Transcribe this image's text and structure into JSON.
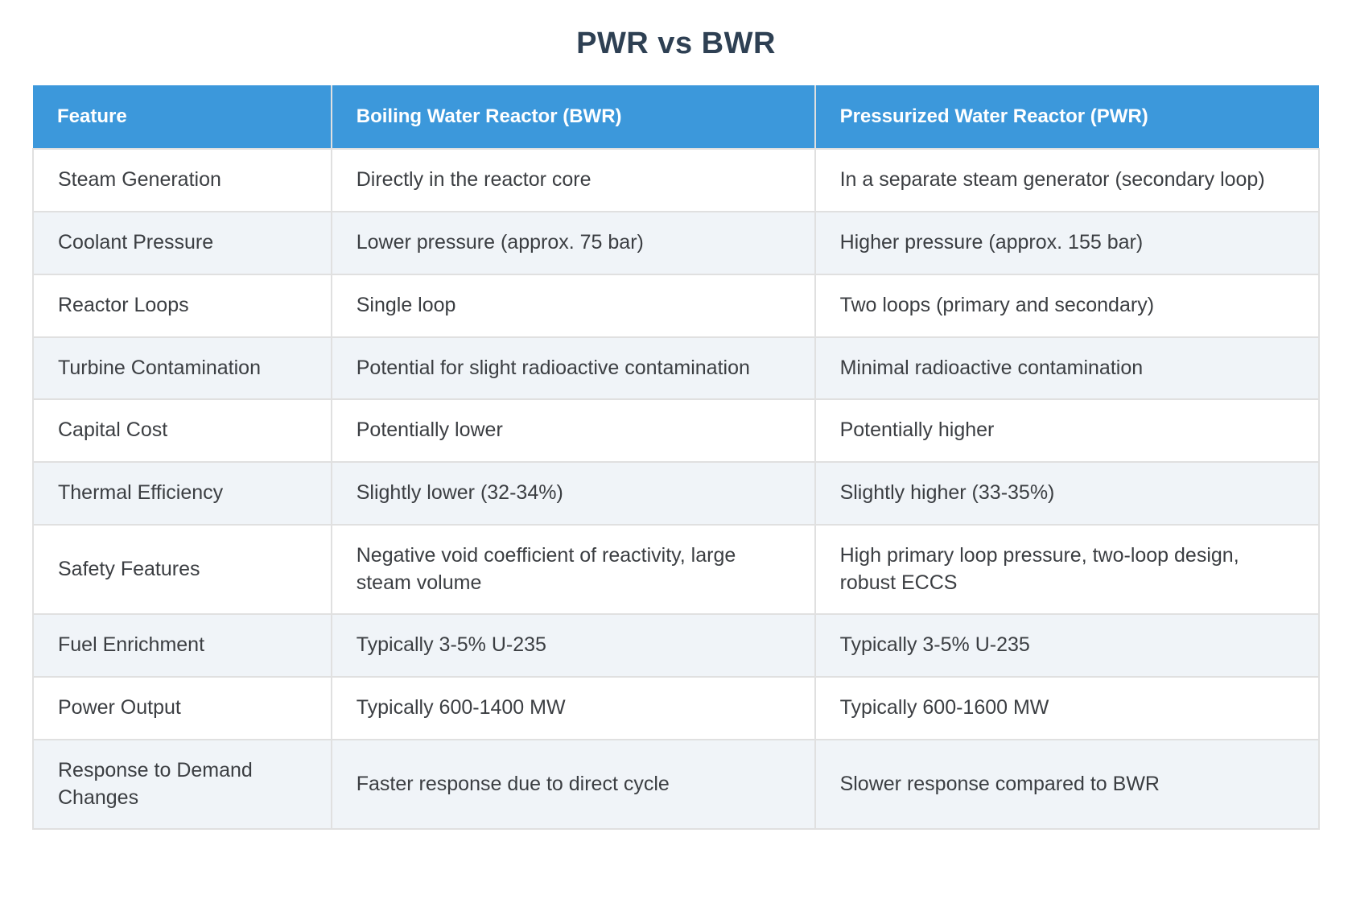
{
  "title": "PWR vs BWR",
  "colors": {
    "header_bg": "#3c98db",
    "header_text": "#ffffff",
    "row_bg": "#ffffff",
    "row_alt_bg": "#f0f4f8",
    "border": "#e0e0e0",
    "body_text": "#3b3e42",
    "title_text": "#2e4053",
    "page_bg": "#ffffff"
  },
  "table": {
    "columns": [
      "Feature",
      "Boiling Water Reactor (BWR)",
      "Pressurized Water Reactor (PWR)"
    ],
    "rows": [
      [
        "Steam Generation",
        "Directly in the reactor core",
        "In a separate steam generator (secondary loop)"
      ],
      [
        "Coolant Pressure",
        "Lower pressure (approx. 75 bar)",
        "Higher pressure (approx. 155 bar)"
      ],
      [
        "Reactor Loops",
        "Single loop",
        "Two loops (primary and secondary)"
      ],
      [
        "Turbine Contamination",
        "Potential for slight radioactive contamination",
        "Minimal radioactive contamination"
      ],
      [
        "Capital Cost",
        "Potentially lower",
        "Potentially higher"
      ],
      [
        "Thermal Efficiency",
        "Slightly lower (32-34%)",
        "Slightly higher (33-35%)"
      ],
      [
        "Safety Features",
        "Negative void coefficient of reactivity, large steam volume",
        "High primary loop pressure, two-loop design, robust ECCS"
      ],
      [
        "Fuel Enrichment",
        "Typically 3-5% U-235",
        "Typically 3-5% U-235"
      ],
      [
        "Power Output",
        "Typically 600-1400 MW",
        "Typically 600-1600 MW"
      ],
      [
        "Response to Demand Changes",
        "Faster response due to direct cycle",
        "Slower response compared to BWR"
      ]
    ]
  }
}
